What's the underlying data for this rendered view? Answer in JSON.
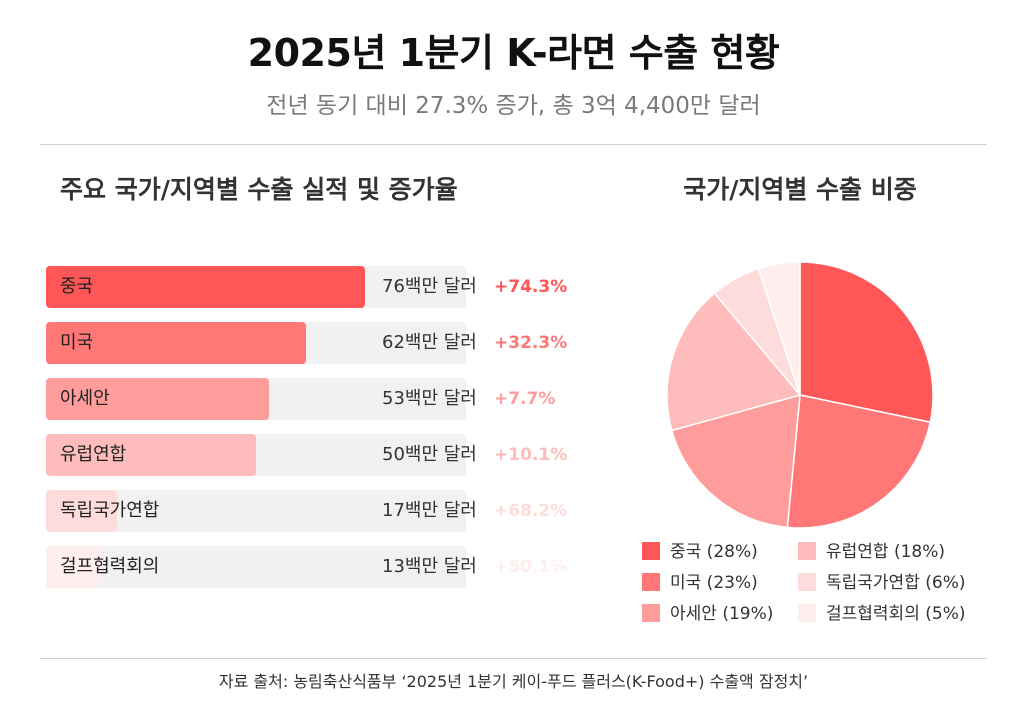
{
  "header": {
    "title": "2025년 1분기 K-라면 수출 현황",
    "subtitle": "전년 동기 대비 27.3% 증가, 총 3억 4,400만 달러"
  },
  "bar_section": {
    "title": "주요 국가/지역별 수출 실적 및 증가율"
  },
  "pie_section": {
    "title": "국가/지역별 수출 비중"
  },
  "colors": {
    "c1": "#ff5757",
    "c2": "#ff7777",
    "c3": "#ff9c9c",
    "c4": "#ffbcbc",
    "c5": "#ffdcdc",
    "c6": "#ffeeee",
    "track": "#f1f1f1"
  },
  "chart_data": [
    {
      "type": "bar",
      "title": "주요 국가/지역별 수출 실적 및 증가율",
      "orientation": "horizontal",
      "categories": [
        "중국",
        "미국",
        "아세안",
        "유럽연합",
        "독립국가연합",
        "걸프협력회의"
      ],
      "values": [
        76,
        62,
        53,
        50,
        17,
        13
      ],
      "value_labels": [
        "76백만 달러",
        "62백만 달러",
        "53백만 달러",
        "50백만 달러",
        "17백만 달러",
        "13백만 달러"
      ],
      "growth": [
        74.3,
        32.3,
        7.7,
        10.1,
        68.2,
        50.1
      ],
      "growth_labels": [
        "+74.3%",
        "+32.3%",
        "+7.7%",
        "+10.1%",
        "+68.2%",
        "+50.1%"
      ],
      "xlim": [
        0,
        100
      ],
      "grid": false
    },
    {
      "type": "pie",
      "title": "국가/지역별 수출 비중",
      "categories": [
        "중국",
        "미국",
        "아세안",
        "유럽연합",
        "독립국가연합",
        "걸프협력회의"
      ],
      "values": [
        28,
        23,
        19,
        18,
        6,
        5
      ],
      "legend_labels": [
        "중국 (28%)",
        "미국 (23%)",
        "아세안 (19%)",
        "유럽연합 (18%)",
        "독립국가연합 (6%)",
        "걸프협력회의 (5%)"
      ],
      "legend_placement": "bottom"
    }
  ],
  "footer": {
    "source": "자료 출처: 농림축산식품부 ‘2025년 1분기 케이-푸드 플러스(K-Food+) 수출액 잠정치’"
  }
}
